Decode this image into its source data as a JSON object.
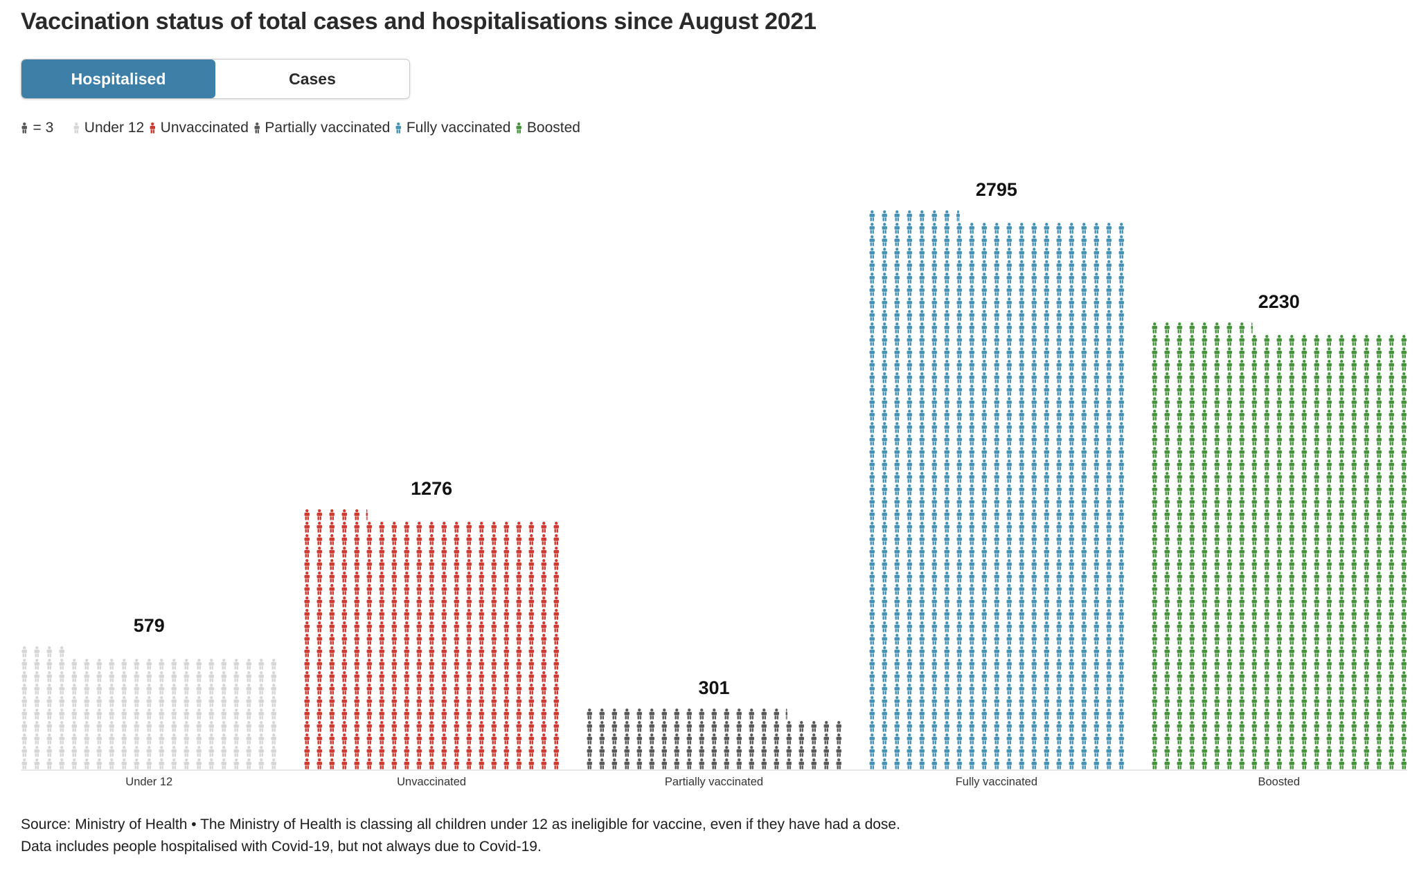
{
  "title": "Vaccination status of total cases and hospitalisations since August 2021",
  "toggle": {
    "hospitalised_label": "Hospitalised",
    "cases_label": "Cases",
    "active": "Hospitalised",
    "active_color": "#3e7fa8"
  },
  "legend": {
    "unit_icon_color": "#58585a",
    "unit_label": "= 3",
    "items": [
      {
        "label": "Under 12",
        "color": "#d6d6d6"
      },
      {
        "label": "Unvaccinated",
        "color": "#cd3a31"
      },
      {
        "label": "Partially vaccinated",
        "color": "#58585a"
      },
      {
        "label": "Fully vaccinated",
        "color": "#4691b4"
      },
      {
        "label": "Boosted",
        "color": "#46923c"
      }
    ]
  },
  "chart_data": {
    "type": "bar",
    "style": "pictogram",
    "per_icon": 3,
    "columns_per_group": 21,
    "categories": [
      "Under 12",
      "Unvaccinated",
      "Partially vaccinated",
      "Fully vaccinated",
      "Boosted"
    ],
    "values": [
      579,
      1276,
      301,
      2795,
      2230
    ],
    "colors": [
      "#d6d6d6",
      "#cd3a31",
      "#58585a",
      "#4691b4",
      "#46923c"
    ],
    "value_label_color": "#121212",
    "baseline_color": "#e8e8e8",
    "legend_position": "top",
    "grid": false
  },
  "source": {
    "line1": "Source: Ministry of Health • The Ministry of Health is classing all children under 12 as ineligible for vaccine, even if they have had a dose.",
    "line2": "Data includes people hospitalised with Covid-19, but not always due to Covid-19."
  }
}
